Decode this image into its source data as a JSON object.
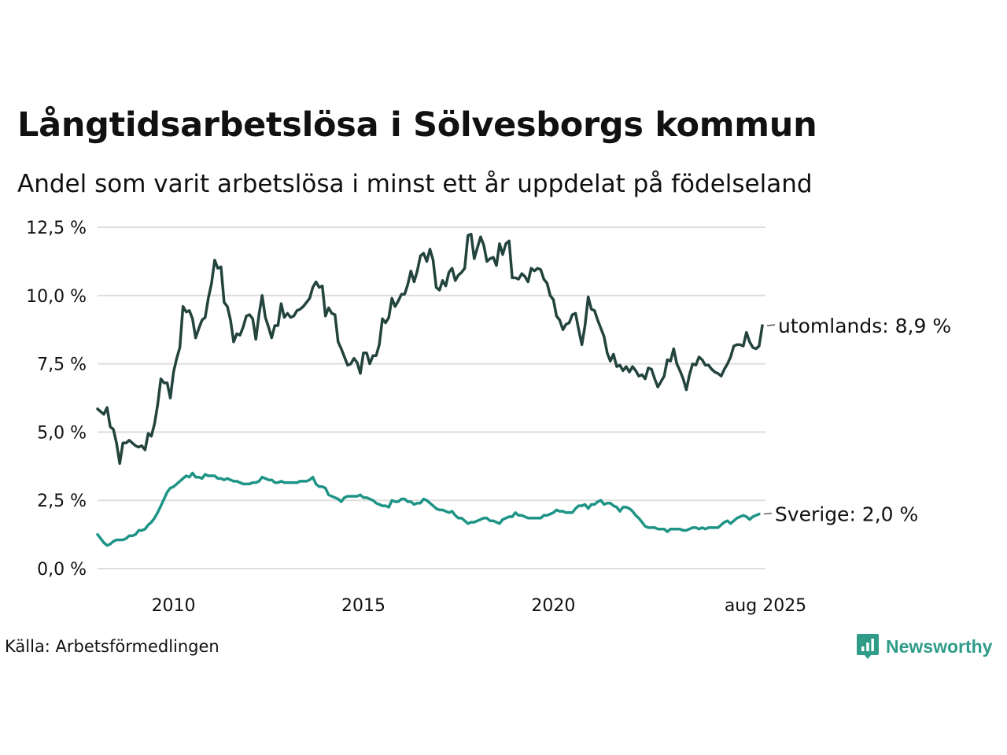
{
  "page": {
    "title": "Långtidsarbetslösa i Sölvesborgs kommun",
    "subtitle": "Andel som varit arbetslösa i minst ett år uppdelat på födelseland",
    "source": "Källa: Arbetsförmedlingen",
    "logo_text": "Newsworthy"
  },
  "colors": {
    "utomlands": "#23433d",
    "sverige": "#1e9486",
    "grid": "#dddddd",
    "logo": "#2e9c89"
  },
  "chart_data": {
    "type": "line",
    "ylim": [
      0,
      12.5
    ],
    "yticks": [
      0,
      2.5,
      5,
      7.5,
      10,
      12.5
    ],
    "ytick_labels": [
      "0,0 %",
      "2,5 %",
      "5,0 %",
      "7,5 %",
      "10,0 %",
      "12,5 %"
    ],
    "xlim": [
      2008.0,
      2025.583
    ],
    "xticks": [
      2010,
      2015,
      2020,
      2025.583
    ],
    "xtick_labels": [
      "2010",
      "2015",
      "2020",
      "aug 2025"
    ],
    "grid": true,
    "series": [
      {
        "key": "utomlands",
        "end_label": "utomlands: 8,9 %",
        "x_start": 2008.0,
        "step": 0.08333,
        "values": [
          5.85,
          5.75,
          5.65,
          5.9,
          5.2,
          5.1,
          4.6,
          3.85,
          4.6,
          4.6,
          4.7,
          4.6,
          4.5,
          4.45,
          4.5,
          4.35,
          4.95,
          4.85,
          5.3,
          6.0,
          6.95,
          6.8,
          6.8,
          6.25,
          7.2,
          7.7,
          8.1,
          9.6,
          9.4,
          9.45,
          9.15,
          8.45,
          8.8,
          9.1,
          9.2,
          9.9,
          10.45,
          11.3,
          11.0,
          11.05,
          9.75,
          9.6,
          9.1,
          8.3,
          8.6,
          8.55,
          8.85,
          9.25,
          9.3,
          9.15,
          8.4,
          9.3,
          10.0,
          9.2,
          8.85,
          8.45,
          8.9,
          8.9,
          9.7,
          9.2,
          9.35,
          9.2,
          9.25,
          9.45,
          9.5,
          9.6,
          9.75,
          9.9,
          10.3,
          10.5,
          10.3,
          10.35,
          9.25,
          9.55,
          9.35,
          9.3,
          8.3,
          8.05,
          7.75,
          7.45,
          7.5,
          7.7,
          7.55,
          7.15,
          7.9,
          7.9,
          7.5,
          7.8,
          7.8,
          8.2,
          9.15,
          9.0,
          9.2,
          9.9,
          9.6,
          9.8,
          10.05,
          10.05,
          10.4,
          10.9,
          10.5,
          10.9,
          11.45,
          11.55,
          11.25,
          11.7,
          11.3,
          10.3,
          10.2,
          10.55,
          10.35,
          10.85,
          11.0,
          10.55,
          10.75,
          10.85,
          11.0,
          12.2,
          12.25,
          11.35,
          11.75,
          12.15,
          11.85,
          11.25,
          11.35,
          11.4,
          11.1,
          11.9,
          11.5,
          11.9,
          12.0,
          10.65,
          10.65,
          10.6,
          10.8,
          10.7,
          10.5,
          11.0,
          10.9,
          11.0,
          10.95,
          10.6,
          10.45,
          10.0,
          9.85,
          9.25,
          9.1,
          8.75,
          8.95,
          9.0,
          9.3,
          9.35,
          8.75,
          8.2,
          8.9,
          9.95,
          9.5,
          9.45,
          9.1,
          8.8,
          8.5,
          7.9,
          7.6,
          7.85,
          7.4,
          7.45,
          7.25,
          7.4,
          7.2,
          7.4,
          7.25,
          7.05,
          7.1,
          6.95,
          7.35,
          7.3,
          6.95,
          6.65,
          6.85,
          7.05,
          7.65,
          7.6,
          8.05,
          7.5,
          7.25,
          6.95,
          6.55,
          7.1,
          7.5,
          7.45,
          7.75,
          7.65,
          7.45,
          7.45,
          7.3,
          7.2,
          7.15,
          7.05,
          7.3,
          7.5,
          7.75,
          8.15,
          8.2,
          8.2,
          8.15,
          8.65,
          8.3,
          8.1,
          8.05,
          8.15,
          8.9
        ]
      },
      {
        "key": "sverige",
        "end_label": "Sverige: 2,0 %",
        "x_start": 2008.0,
        "step": 0.08333,
        "values": [
          1.25,
          1.1,
          0.95,
          0.85,
          0.9,
          1.0,
          1.05,
          1.05,
          1.05,
          1.1,
          1.2,
          1.2,
          1.25,
          1.4,
          1.4,
          1.45,
          1.6,
          1.7,
          1.85,
          2.05,
          2.3,
          2.55,
          2.8,
          2.95,
          3.0,
          3.1,
          3.2,
          3.3,
          3.4,
          3.35,
          3.5,
          3.35,
          3.35,
          3.3,
          3.45,
          3.4,
          3.4,
          3.4,
          3.3,
          3.3,
          3.25,
          3.3,
          3.25,
          3.2,
          3.2,
          3.15,
          3.1,
          3.1,
          3.1,
          3.15,
          3.15,
          3.2,
          3.35,
          3.3,
          3.25,
          3.25,
          3.15,
          3.15,
          3.2,
          3.15,
          3.15,
          3.15,
          3.15,
          3.15,
          3.2,
          3.2,
          3.2,
          3.25,
          3.35,
          3.1,
          3.0,
          3.0,
          2.95,
          2.7,
          2.65,
          2.6,
          2.55,
          2.45,
          2.6,
          2.65,
          2.65,
          2.65,
          2.65,
          2.7,
          2.6,
          2.6,
          2.55,
          2.5,
          2.4,
          2.35,
          2.3,
          2.3,
          2.25,
          2.5,
          2.45,
          2.45,
          2.55,
          2.55,
          2.45,
          2.45,
          2.35,
          2.4,
          2.4,
          2.55,
          2.5,
          2.4,
          2.3,
          2.2,
          2.15,
          2.15,
          2.1,
          2.05,
          2.1,
          1.95,
          1.85,
          1.85,
          1.75,
          1.65,
          1.7,
          1.7,
          1.75,
          1.8,
          1.85,
          1.85,
          1.75,
          1.75,
          1.7,
          1.65,
          1.8,
          1.85,
          1.9,
          1.9,
          2.05,
          1.95,
          1.95,
          1.9,
          1.85,
          1.85,
          1.85,
          1.85,
          1.85,
          1.95,
          1.95,
          2.0,
          2.05,
          2.15,
          2.1,
          2.1,
          2.05,
          2.05,
          2.05,
          2.2,
          2.3,
          2.3,
          2.35,
          2.2,
          2.35,
          2.35,
          2.45,
          2.5,
          2.35,
          2.4,
          2.4,
          2.3,
          2.25,
          2.1,
          2.25,
          2.25,
          2.2,
          2.1,
          1.95,
          1.85,
          1.7,
          1.55,
          1.5,
          1.5,
          1.5,
          1.45,
          1.45,
          1.45,
          1.35,
          1.45,
          1.45,
          1.45,
          1.45,
          1.4,
          1.4,
          1.45,
          1.5,
          1.5,
          1.45,
          1.5,
          1.45,
          1.5,
          1.5,
          1.5,
          1.5,
          1.6,
          1.7,
          1.75,
          1.65,
          1.75,
          1.85,
          1.9,
          1.95,
          1.9,
          1.8,
          1.9,
          1.95,
          2.0
        ]
      }
    ]
  }
}
